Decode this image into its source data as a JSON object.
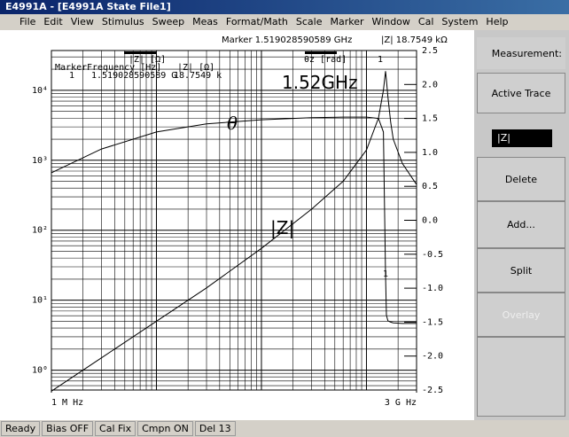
{
  "window": {
    "title": "E4991A - [E4991A State File1]",
    "menu": [
      "File",
      "Edit",
      "View",
      "Stimulus",
      "Sweep",
      "Meas",
      "Format/Math",
      "Scale",
      "Marker",
      "Window",
      "Cal",
      "System",
      "Help"
    ]
  },
  "readout": {
    "marker": "Marker 1.519028590589 GHz",
    "value": "|Z|  18.7549 kΩ"
  },
  "softkeys": {
    "header": "Measurement:",
    "buttons": [
      "Active Trace",
      "Delete",
      "Add...",
      "Split",
      "Overlay"
    ],
    "dropdown": "|Z|"
  },
  "status": {
    "items": [
      "Ready",
      "Bias OFF",
      "Cal Fix",
      "Cmpn ON",
      "Del 13"
    ]
  },
  "chart_data": {
    "type": "line",
    "xlog": true,
    "ylog": true,
    "grid": true,
    "trace_labels": [
      "|Z| [Ω]",
      "θz [rad]"
    ],
    "marker_table": {
      "headers": [
        "Marker",
        "Frequency [Hz]",
        "|Z| [Ω]"
      ],
      "row": [
        "1",
        "1.519028590589 G",
        "18.7549 k"
      ]
    },
    "annotations": [
      "1.52GHz",
      "θ",
      "|Z|",
      "1",
      "1"
    ],
    "x": [
      1000000,
      3000000,
      10000000,
      30000000,
      100000000,
      300000000,
      600000000,
      1000000000,
      1300000000,
      1450000000,
      1519028590,
      1550000000,
      1600000000,
      1700000000,
      1800000000,
      2200000000,
      3000000000
    ],
    "series": [
      {
        "name": "|Z|",
        "color": "#000000",
        "values": [
          0.5,
          1.5,
          5,
          15,
          55,
          200,
          500,
          1400,
          4000,
          10000,
          18755,
          14000,
          8000,
          3500,
          2000,
          900,
          450
        ]
      },
      {
        "name": "θ",
        "color": "#000000",
        "axis": "y2",
        "values": [
          0.7,
          1.05,
          1.3,
          1.42,
          1.48,
          1.51,
          1.52,
          1.52,
          1.5,
          1.3,
          -0.8,
          -1.4,
          -1.48,
          -1.5,
          -1.51,
          -1.52,
          -1.52
        ]
      }
    ],
    "xlim": [
      1000000,
      3000000000
    ],
    "xticks": [
      {
        "value": 1000000,
        "label": "1 M Hz"
      },
      {
        "value": 3000000000,
        "label": "3 G Hz"
      }
    ],
    "ylim": [
      0.52,
      37000
    ],
    "yticks": [
      {
        "value": 1,
        "label": "10⁰"
      },
      {
        "value": 10,
        "label": "10¹"
      },
      {
        "value": 100,
        "label": "10²"
      },
      {
        "value": 1000,
        "label": "10³"
      },
      {
        "value": 10000,
        "label": "10⁴"
      }
    ],
    "y2lim": [
      -2.5,
      2.5
    ],
    "y2ticks": [
      2.5,
      {
        "value": 2,
        "label": "2.0"
      },
      1.5,
      {
        "value": 1,
        "label": "1.0"
      },
      0.5,
      {
        "value": 0,
        "label": "0.0"
      },
      -0.5,
      {
        "value": -1,
        "label": "-1.0"
      },
      -1.5,
      {
        "value": -2,
        "label": "-2.0"
      },
      -2.5
    ]
  }
}
